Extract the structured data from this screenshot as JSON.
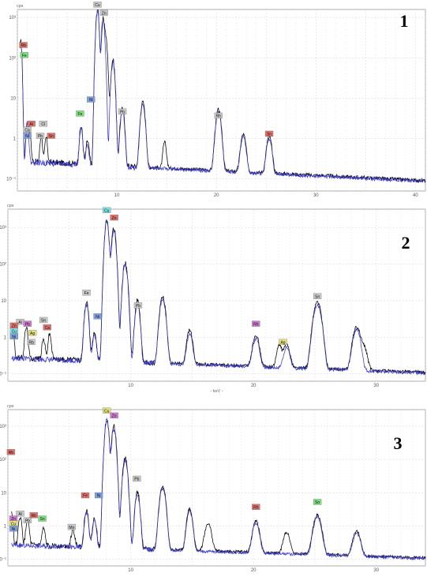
{
  "chart_data": [
    {
      "type": "line",
      "panel_number": "1",
      "y_unit": "cps",
      "xlabel": "",
      "ylog": true,
      "xlim": [
        0,
        41
      ],
      "ylim_decades": [
        -1.3,
        3.2
      ],
      "x_ticks": [
        "10",
        "20",
        "30",
        "40"
      ],
      "y_ticks": [
        "10⁻¹",
        "1",
        "10",
        "10²",
        "10³"
      ],
      "grid": true,
      "series": [
        {
          "color": "#000000",
          "peaks": [
            [
              0.35,
              2.4,
              0.12
            ],
            [
              1.0,
              0.35,
              0.15
            ],
            [
              1.25,
              0.0,
              0.15
            ],
            [
              2.4,
              -0.05,
              0.15
            ],
            [
              2.9,
              -0.1,
              0.15
            ],
            [
              6.4,
              0.25,
              0.18
            ],
            [
              7.05,
              -0.2,
              0.18
            ],
            [
              8.05,
              3.2,
              0.17
            ],
            [
              8.63,
              2.95,
              0.18
            ],
            [
              8.9,
              2.4,
              0.18
            ],
            [
              9.6,
              1.95,
              0.2
            ],
            [
              10.55,
              0.75,
              0.22
            ],
            [
              12.6,
              0.9,
              0.25
            ],
            [
              14.8,
              -0.2,
              0.2
            ],
            [
              20.2,
              0.7,
              0.3
            ],
            [
              22.7,
              0.05,
              0.3
            ],
            [
              25.3,
              0.0,
              0.3
            ]
          ]
        },
        {
          "color": "#3a3ad6",
          "peaks": [
            [
              0.35,
              2.4,
              0.12
            ],
            [
              1.0,
              0.35,
              0.15
            ],
            [
              6.4,
              0.2,
              0.18
            ],
            [
              7.05,
              -0.3,
              0.18
            ],
            [
              8.05,
              3.2,
              0.17
            ],
            [
              8.63,
              2.9,
              0.18
            ],
            [
              9.6,
              1.9,
              0.2
            ],
            [
              10.55,
              0.7,
              0.22
            ],
            [
              12.6,
              0.85,
              0.25
            ],
            [
              20.2,
              0.65,
              0.3
            ],
            [
              22.7,
              0.0,
              0.3
            ],
            [
              25.3,
              -0.05,
              0.3
            ]
          ]
        }
      ],
      "labels": [
        {
          "text": "Rb",
          "x": 0.6,
          "y": 2.3,
          "color": "#e0706a"
        },
        {
          "text": "Fe",
          "x": 0.7,
          "y": 2.05,
          "color": "#7ee07e"
        },
        {
          "text": "Al",
          "x": 1.4,
          "y": 0.35,
          "color": "#e0706a"
        },
        {
          "text": "Ca",
          "x": 1.0,
          "y": 0.2,
          "color": "#c8c8c8"
        },
        {
          "text": "Ni",
          "x": 1.0,
          "y": 0.05,
          "color": "#7f9fe0"
        },
        {
          "text": "Pb",
          "x": 2.3,
          "y": 0.05,
          "color": "#c8c8c8"
        },
        {
          "text": "Cl",
          "x": 2.6,
          "y": 0.35,
          "color": "#c8c8c8"
        },
        {
          "text": "Sn",
          "x": 3.4,
          "y": 0.05,
          "color": "#e0706a"
        },
        {
          "text": "Fe",
          "x": 6.3,
          "y": 0.6,
          "color": "#7ee07e"
        },
        {
          "text": "Ni",
          "x": 7.4,
          "y": 0.95,
          "color": "#7f9fe0"
        },
        {
          "text": "Cu",
          "x": 8.05,
          "y": 3.3,
          "color": "#c8c8c8"
        },
        {
          "text": "Zn",
          "x": 8.7,
          "y": 3.1,
          "color": "#c8c8c8"
        },
        {
          "text": "Pb",
          "x": 10.55,
          "y": 0.65,
          "color": "#c8c8c8"
        },
        {
          "text": "Rh",
          "x": 20.2,
          "y": 0.55,
          "color": "#c8c8c8"
        },
        {
          "text": "Sn",
          "x": 25.3,
          "y": 0.1,
          "color": "#e0706a"
        }
      ]
    },
    {
      "type": "line",
      "panel_number": "2",
      "y_unit": "cps",
      "xlabel": "- keV -",
      "ylog": true,
      "xlim": [
        0,
        34
      ],
      "ylim_decades": [
        -1.2,
        3.5
      ],
      "x_ticks": [
        "10",
        "20",
        "30"
      ],
      "y_ticks": [
        "10⁻¹",
        "1",
        "10",
        "10²",
        "10³"
      ],
      "grid": true,
      "series": [
        {
          "color": "#000000",
          "peaks": [
            [
              0.4,
              0.2,
              0.12
            ],
            [
              1.5,
              0.2,
              0.15
            ],
            [
              2.9,
              -0.2,
              0.15
            ],
            [
              3.4,
              0.0,
              0.15
            ],
            [
              6.4,
              0.95,
              0.18
            ],
            [
              7.05,
              0.05,
              0.18
            ],
            [
              8.05,
              3.2,
              0.17
            ],
            [
              8.63,
              3.0,
              0.18
            ],
            [
              9.55,
              2.05,
              0.2
            ],
            [
              10.55,
              1.0,
              0.2
            ],
            [
              12.6,
              1.1,
              0.25
            ],
            [
              14.8,
              0.15,
              0.25
            ],
            [
              20.2,
              0.0,
              0.3
            ],
            [
              22.1,
              -0.35,
              0.25
            ],
            [
              22.7,
              -0.3,
              0.3
            ],
            [
              25.2,
              0.95,
              0.35
            ],
            [
              28.4,
              0.25,
              0.35
            ],
            [
              29.0,
              -0.4,
              0.3
            ]
          ]
        },
        {
          "color": "#3a3ad6",
          "peaks": [
            [
              6.4,
              0.9,
              0.18
            ],
            [
              7.05,
              0.0,
              0.18
            ],
            [
              8.05,
              3.2,
              0.17
            ],
            [
              8.63,
              2.95,
              0.18
            ],
            [
              9.55,
              2.0,
              0.2
            ],
            [
              10.55,
              0.95,
              0.2
            ],
            [
              12.6,
              1.05,
              0.25
            ],
            [
              14.8,
              0.05,
              0.25
            ],
            [
              20.2,
              -0.1,
              0.3
            ],
            [
              22.7,
              -0.4,
              0.3
            ],
            [
              25.2,
              0.9,
              0.35
            ],
            [
              28.4,
              0.2,
              0.35
            ]
          ]
        }
      ],
      "labels": [
        {
          "text": "Al",
          "x": 1.0,
          "y": 0.4,
          "color": "#c8c8c8"
        },
        {
          "text": "Zn",
          "x": 0.5,
          "y": 0.3,
          "color": "#e0706a"
        },
        {
          "text": "Cu",
          "x": 0.5,
          "y": 0.15,
          "color": "#7fe0e0"
        },
        {
          "text": "Ni",
          "x": 0.5,
          "y": 0.0,
          "color": "#7f9fe0"
        },
        {
          "text": "Pb",
          "x": 1.6,
          "y": 0.35,
          "color": "#d07ad0"
        },
        {
          "text": "Ag",
          "x": 2.0,
          "y": 0.1,
          "color": "#e0e07e"
        },
        {
          "text": "Sn",
          "x": 2.9,
          "y": 0.45,
          "color": "#c8c8c8"
        },
        {
          "text": "Ca",
          "x": 3.2,
          "y": 0.25,
          "color": "#e0706a"
        },
        {
          "text": "Rb",
          "x": 1.9,
          "y": -0.15,
          "color": "#c8c8c8"
        },
        {
          "text": "Fe",
          "x": 6.4,
          "y": 1.2,
          "color": "#c8c8c8"
        },
        {
          "text": "Ni",
          "x": 7.3,
          "y": 0.55,
          "color": "#7f9fe0"
        },
        {
          "text": "Cu",
          "x": 8.05,
          "y": 3.45,
          "color": "#7fe0e0"
        },
        {
          "text": "Zn",
          "x": 8.65,
          "y": 3.25,
          "color": "#e0706a"
        },
        {
          "text": "Pb",
          "x": 10.6,
          "y": 0.85,
          "color": "#c8c8c8"
        },
        {
          "text": "Rh",
          "x": 20.2,
          "y": 0.35,
          "color": "#d07ad0"
        },
        {
          "text": "Ag",
          "x": 22.4,
          "y": -0.15,
          "color": "#e0e07e"
        },
        {
          "text": "Sn",
          "x": 25.2,
          "y": 1.1,
          "color": "#c8c8c8"
        }
      ]
    },
    {
      "type": "line",
      "panel_number": "3",
      "y_unit": "cps",
      "xlabel": "",
      "ylog": true,
      "xlim": [
        0,
        34
      ],
      "ylim_decades": [
        -1.2,
        3.5
      ],
      "x_ticks": [
        "10",
        "20",
        "30"
      ],
      "y_ticks": [
        "10⁻¹",
        "1",
        "10",
        "10²",
        "10³"
      ],
      "grid": true,
      "series": [
        {
          "color": "#000000",
          "peaks": [
            [
              0.3,
              0.35,
              0.12
            ],
            [
              1.0,
              0.2,
              0.15
            ],
            [
              1.6,
              0.1,
              0.15
            ],
            [
              2.9,
              -0.25,
              0.15
            ],
            [
              5.3,
              -0.3,
              0.18
            ],
            [
              6.4,
              0.45,
              0.18
            ],
            [
              7.05,
              0.15,
              0.18
            ],
            [
              8.05,
              3.2,
              0.17
            ],
            [
              8.63,
              3.0,
              0.18
            ],
            [
              9.55,
              2.05,
              0.2
            ],
            [
              10.55,
              1.0,
              0.2
            ],
            [
              12.6,
              1.2,
              0.25
            ],
            [
              14.8,
              0.5,
              0.25
            ],
            [
              16.3,
              0.0,
              0.3
            ],
            [
              20.2,
              0.1,
              0.3
            ],
            [
              22.7,
              -0.3,
              0.3
            ],
            [
              25.2,
              0.3,
              0.35
            ],
            [
              28.4,
              -0.25,
              0.35
            ]
          ]
        },
        {
          "color": "#3a3ad6",
          "peaks": [
            [
              6.4,
              0.4,
              0.18
            ],
            [
              7.05,
              0.1,
              0.18
            ],
            [
              8.05,
              3.2,
              0.17
            ],
            [
              8.63,
              2.95,
              0.18
            ],
            [
              9.55,
              2.0,
              0.2
            ],
            [
              10.55,
              0.95,
              0.2
            ],
            [
              12.6,
              1.15,
              0.25
            ],
            [
              14.8,
              0.45,
              0.25
            ],
            [
              20.2,
              0.05,
              0.3
            ],
            [
              25.2,
              0.25,
              0.35
            ],
            [
              28.4,
              -0.3,
              0.35
            ]
          ]
        }
      ],
      "labels": [
        {
          "text": "Rb",
          "x": 0.25,
          "y": 2.2,
          "color": "#e0706a"
        },
        {
          "text": "Al",
          "x": 1.0,
          "y": 0.35,
          "color": "#c8c8c8"
        },
        {
          "text": "Zn",
          "x": 0.45,
          "y": 0.2,
          "color": "#d07ad0"
        },
        {
          "text": "Cu",
          "x": 0.45,
          "y": 0.05,
          "color": "#e0e07e"
        },
        {
          "text": "Ni",
          "x": 0.45,
          "y": -0.1,
          "color": "#7f9fe0"
        },
        {
          "text": "Pb",
          "x": 1.6,
          "y": 0.15,
          "color": "#c8c8c8"
        },
        {
          "text": "Rh",
          "x": 2.1,
          "y": 0.3,
          "color": "#e0706a"
        },
        {
          "text": "Sn",
          "x": 2.8,
          "y": 0.2,
          "color": "#7ee07e"
        },
        {
          "text": "Mn",
          "x": 5.2,
          "y": -0.05,
          "color": "#c8c8c8"
        },
        {
          "text": "Fe",
          "x": 6.3,
          "y": 0.9,
          "color": "#e0706a"
        },
        {
          "text": "Ni",
          "x": 7.4,
          "y": 0.9,
          "color": "#7f9fe0"
        },
        {
          "text": "Cu",
          "x": 8.05,
          "y": 3.45,
          "color": "#e0e07e"
        },
        {
          "text": "Zn",
          "x": 8.65,
          "y": 3.3,
          "color": "#d07ad0"
        },
        {
          "text": "Pb",
          "x": 10.5,
          "y": 1.4,
          "color": "#c8c8c8"
        },
        {
          "text": "Rh",
          "x": 20.2,
          "y": 0.55,
          "color": "#e0706a"
        },
        {
          "text": "Sn",
          "x": 25.2,
          "y": 0.7,
          "color": "#7ee07e"
        }
      ]
    }
  ]
}
